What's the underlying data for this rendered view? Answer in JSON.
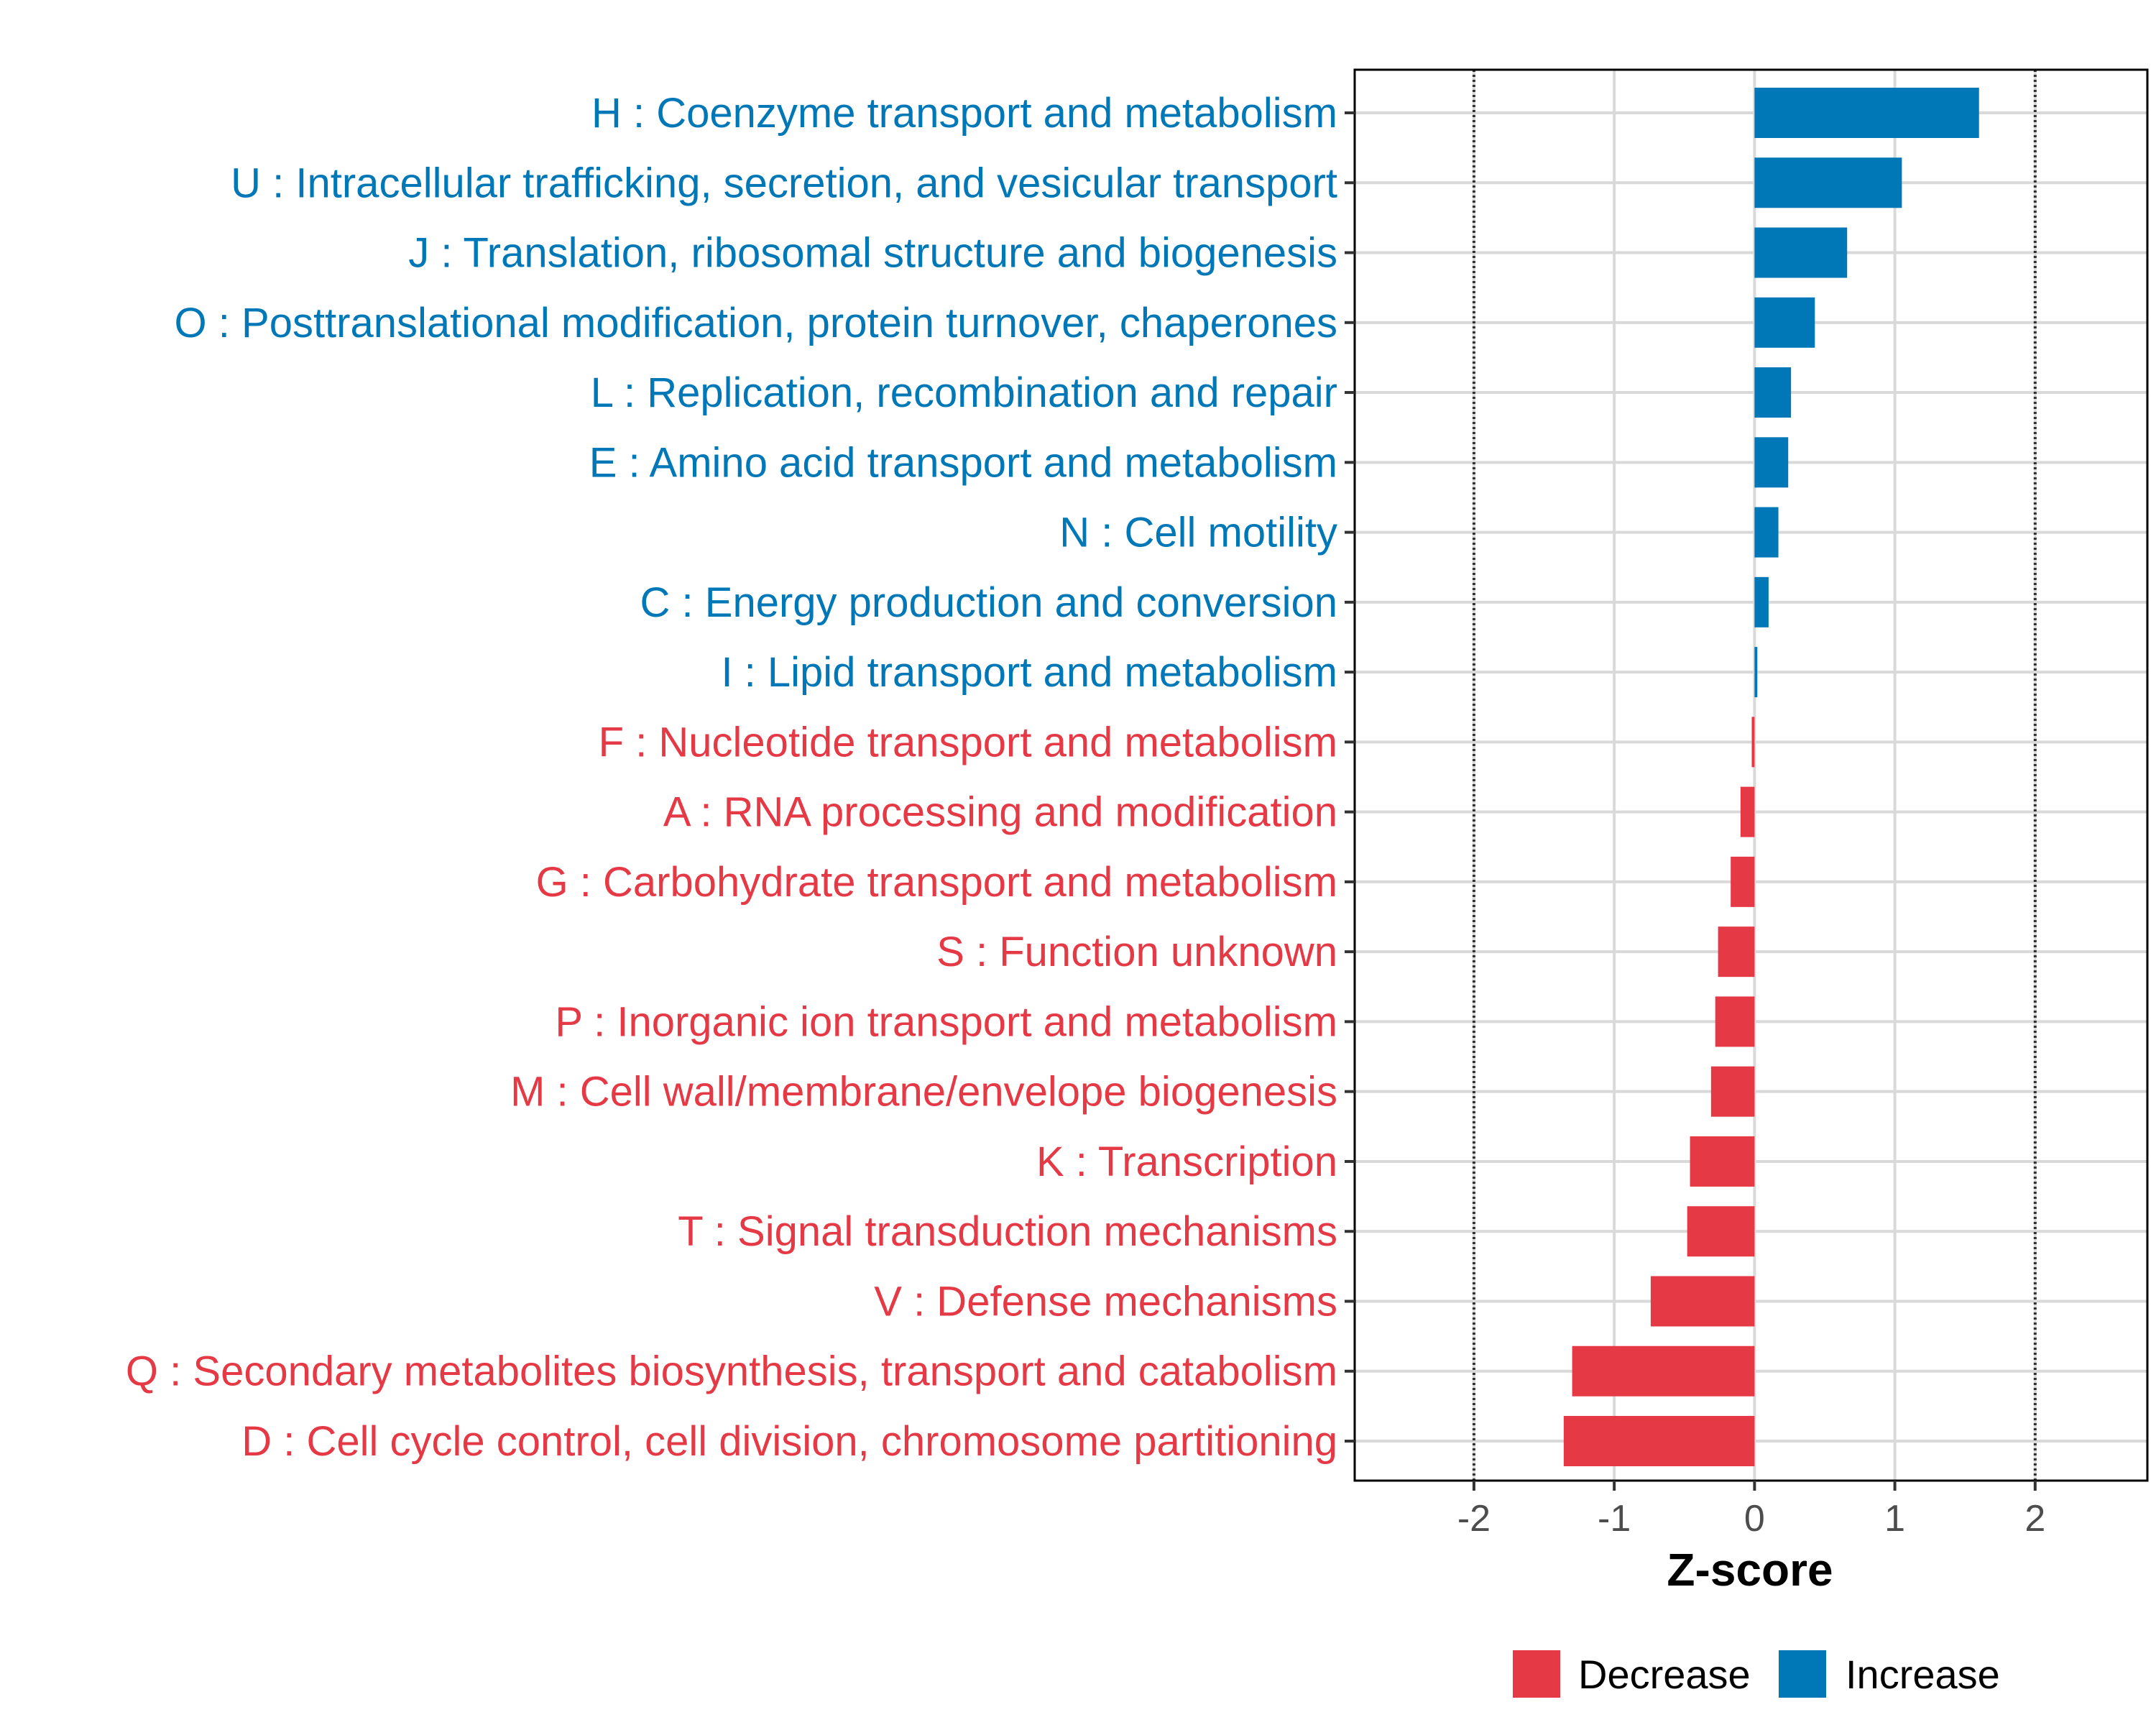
{
  "chart_data": {
    "type": "bar",
    "orientation": "horizontal",
    "categories": [
      "H : Coenzyme transport and metabolism",
      "U : Intracellular trafficking, secretion, and vesicular transport",
      "J : Translation, ribosomal structure and biogenesis",
      "O : Posttranslational modification, protein turnover, chaperones",
      "L : Replication, recombination and repair",
      "E : Amino acid transport and metabolism",
      "N : Cell motility",
      "C : Energy production and conversion",
      "I : Lipid transport and metabolism",
      "F : Nucleotide transport and metabolism",
      "A : RNA processing and modification",
      "G : Carbohydrate transport and metabolism",
      "S : Function unknown",
      "P : Inorganic ion transport and metabolism",
      "M : Cell wall/membrane/envelope biogenesis",
      "K : Transcription",
      "T : Signal transduction mechanisms",
      "V : Defense mechanisms",
      "Q : Secondary metabolites biosynthesis, transport and catabolism",
      "D : Cell cycle control, cell division, chromosome partitioning"
    ],
    "values": [
      1.6,
      1.05,
      0.66,
      0.43,
      0.26,
      0.24,
      0.17,
      0.1,
      0.02,
      -0.02,
      -0.1,
      -0.17,
      -0.26,
      -0.28,
      -0.31,
      -0.46,
      -0.48,
      -0.74,
      -1.3,
      -1.36
    ],
    "groups": [
      "Increase",
      "Increase",
      "Increase",
      "Increase",
      "Increase",
      "Increase",
      "Increase",
      "Increase",
      "Increase",
      "Decrease",
      "Decrease",
      "Decrease",
      "Decrease",
      "Decrease",
      "Decrease",
      "Decrease",
      "Decrease",
      "Decrease",
      "Decrease",
      "Decrease"
    ],
    "xlabel": "Z-score",
    "ylabel": "",
    "xlim": [
      -2.85,
      2.8
    ],
    "xticks": [
      "-2",
      "-1",
      "0",
      "1",
      "2"
    ],
    "xtick_values": [
      -2,
      -1,
      0,
      1,
      2
    ],
    "reference_lines": [
      -2,
      2
    ],
    "grid": true,
    "legend": {
      "position": "bottom",
      "entries": [
        {
          "label": "Decrease",
          "color": "#E63946"
        },
        {
          "label": "Increase",
          "color": "#0077B6"
        }
      ]
    },
    "colors": {
      "Decrease": "#E63946",
      "Increase": "#0077B6"
    }
  }
}
